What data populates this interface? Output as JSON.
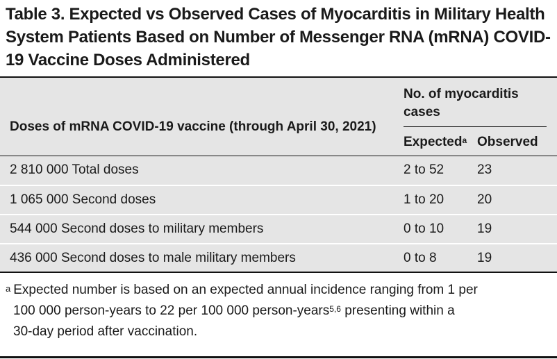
{
  "title": "Table 3. Expected vs Observed Cases of Myocarditis in Military Health System Patients Based on Number of Messenger RNA (mRNA) COVID-19 Vaccine Doses Administered",
  "table": {
    "col_doses_header": "Doses of mRNA COVID-19 vaccine (through April 30, 2021)",
    "group_header": "No. of myocarditis cases",
    "col_expected_header": "Expected",
    "col_expected_mark": "a",
    "col_observed_header": "Observed",
    "rows": [
      {
        "doses": "2 810 000 Total doses",
        "expected": "2 to 52",
        "observed": "23"
      },
      {
        "doses": "1 065 000 Second doses",
        "expected": "1 to 20",
        "observed": "20"
      },
      {
        "doses": "544 000 Second doses to military members",
        "expected": "0 to 10",
        "observed": "19"
      },
      {
        "doses": "436 000 Second doses to male military members",
        "expected": "0 to 8",
        "observed": "19"
      }
    ]
  },
  "footnote": {
    "mark": "a",
    "line1": "Expected number is based on an expected annual incidence ranging from 1 per",
    "line2_pre": "100 000 person-years to 22 per 100 000 person-years",
    "line2_refs": "5,6",
    "line2_post": " presenting within a",
    "line3": "30-day period after vaccination."
  },
  "colors": {
    "table_background": "#e5e5e5",
    "rule": "#111111",
    "text": "#1a1a1a"
  }
}
